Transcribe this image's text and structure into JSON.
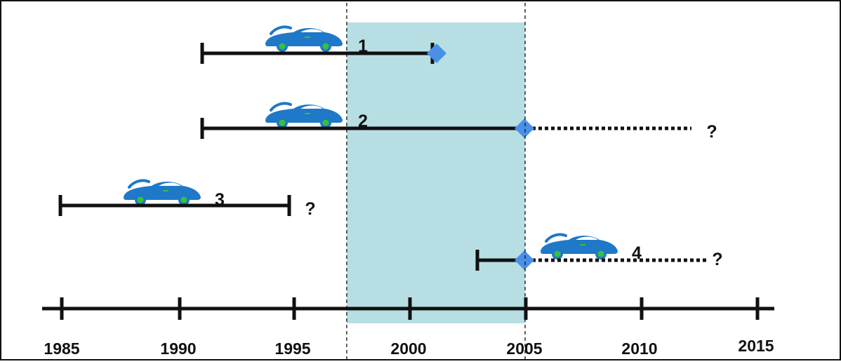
{
  "colors": {
    "line": "#111111",
    "window": "#b7dfe3",
    "marker": "#4a90e8",
    "car_body": "#1f78c8",
    "car_wheel": "#34c23a"
  },
  "axis": {
    "labels": [
      "1985",
      "1990",
      "1995",
      "2000",
      "2005",
      "2010",
      "2015"
    ]
  },
  "observation_window": {
    "start_year": 1997.3,
    "end_year": 2005.0
  },
  "vehicles": [
    {
      "id": "1",
      "label": "1",
      "start_year": 1991.0,
      "end_year": 2001.0,
      "end_marker": true,
      "continues": false,
      "unknown_label": ""
    },
    {
      "id": "2",
      "label": "2",
      "start_year": 1991.0,
      "end_year": 2005.0,
      "end_marker": true,
      "continues": true,
      "unknown_label": "?"
    },
    {
      "id": "3",
      "label": "3",
      "start_year": 1985.0,
      "end_year": 1994.8,
      "end_marker": false,
      "continues": false,
      "unknown_label": "?"
    },
    {
      "id": "4",
      "label": "4",
      "start_year": 2002.8,
      "end_year": 2005.0,
      "end_marker": true,
      "continues": true,
      "unknown_label": "?"
    }
  ]
}
